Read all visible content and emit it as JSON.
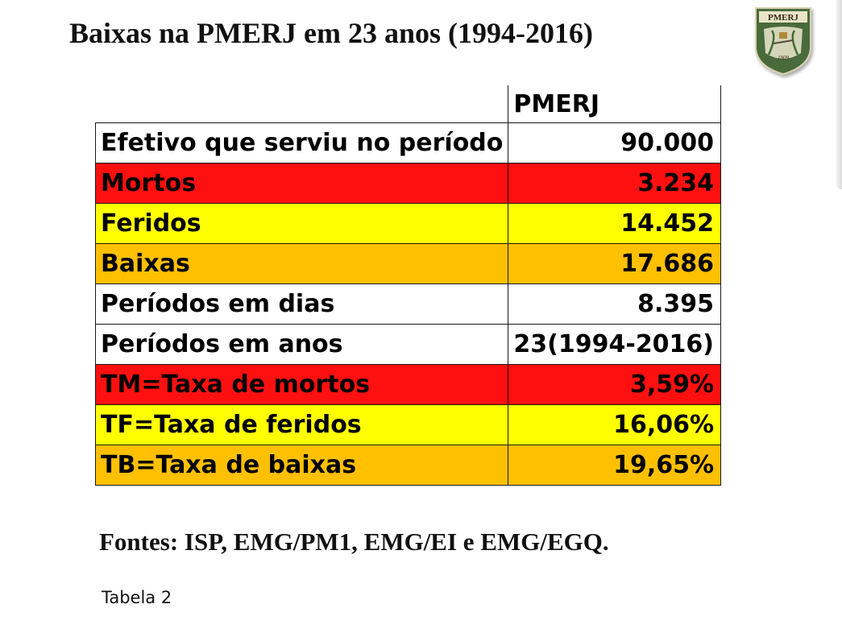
{
  "document": {
    "title": "Baixas na PMERJ em 23 anos (1994-2016)",
    "sources": "Fontes: ISP, EMG/PM1, EMG/EI e EMG/EGQ.",
    "caption": "Tabela 2"
  },
  "logo": {
    "text": "PMERJ",
    "year": "1809",
    "icon": "pmerj-shield-icon"
  },
  "colors": {
    "red": "#ff1010",
    "yellow": "#ffff00",
    "orange": "#ffc000",
    "logo_green": "#4a6b3a"
  },
  "table": {
    "header": {
      "label": "",
      "value": "PMERJ"
    },
    "rows": [
      {
        "label": "Efetivo que serviu no período",
        "value": "90.000",
        "color": "white"
      },
      {
        "label": "Mortos",
        "value": "3.234",
        "color": "red"
      },
      {
        "label": "Feridos",
        "value": "14.452",
        "color": "yellow"
      },
      {
        "label": "Baixas",
        "value": "17.686",
        "color": "orange"
      },
      {
        "label": "Períodos em dias",
        "value": "8.395",
        "color": "white"
      },
      {
        "label": "Períodos em anos",
        "value": "23(1994-2016)",
        "color": "white"
      },
      {
        "label": "TM=Taxa de mortos",
        "value": "3,59%",
        "color": "red"
      },
      {
        "label": "TF=Taxa de feridos",
        "value": "16,06%",
        "color": "yellow"
      },
      {
        "label": "TB=Taxa de baixas",
        "value": "19,65%",
        "color": "orange"
      }
    ]
  }
}
